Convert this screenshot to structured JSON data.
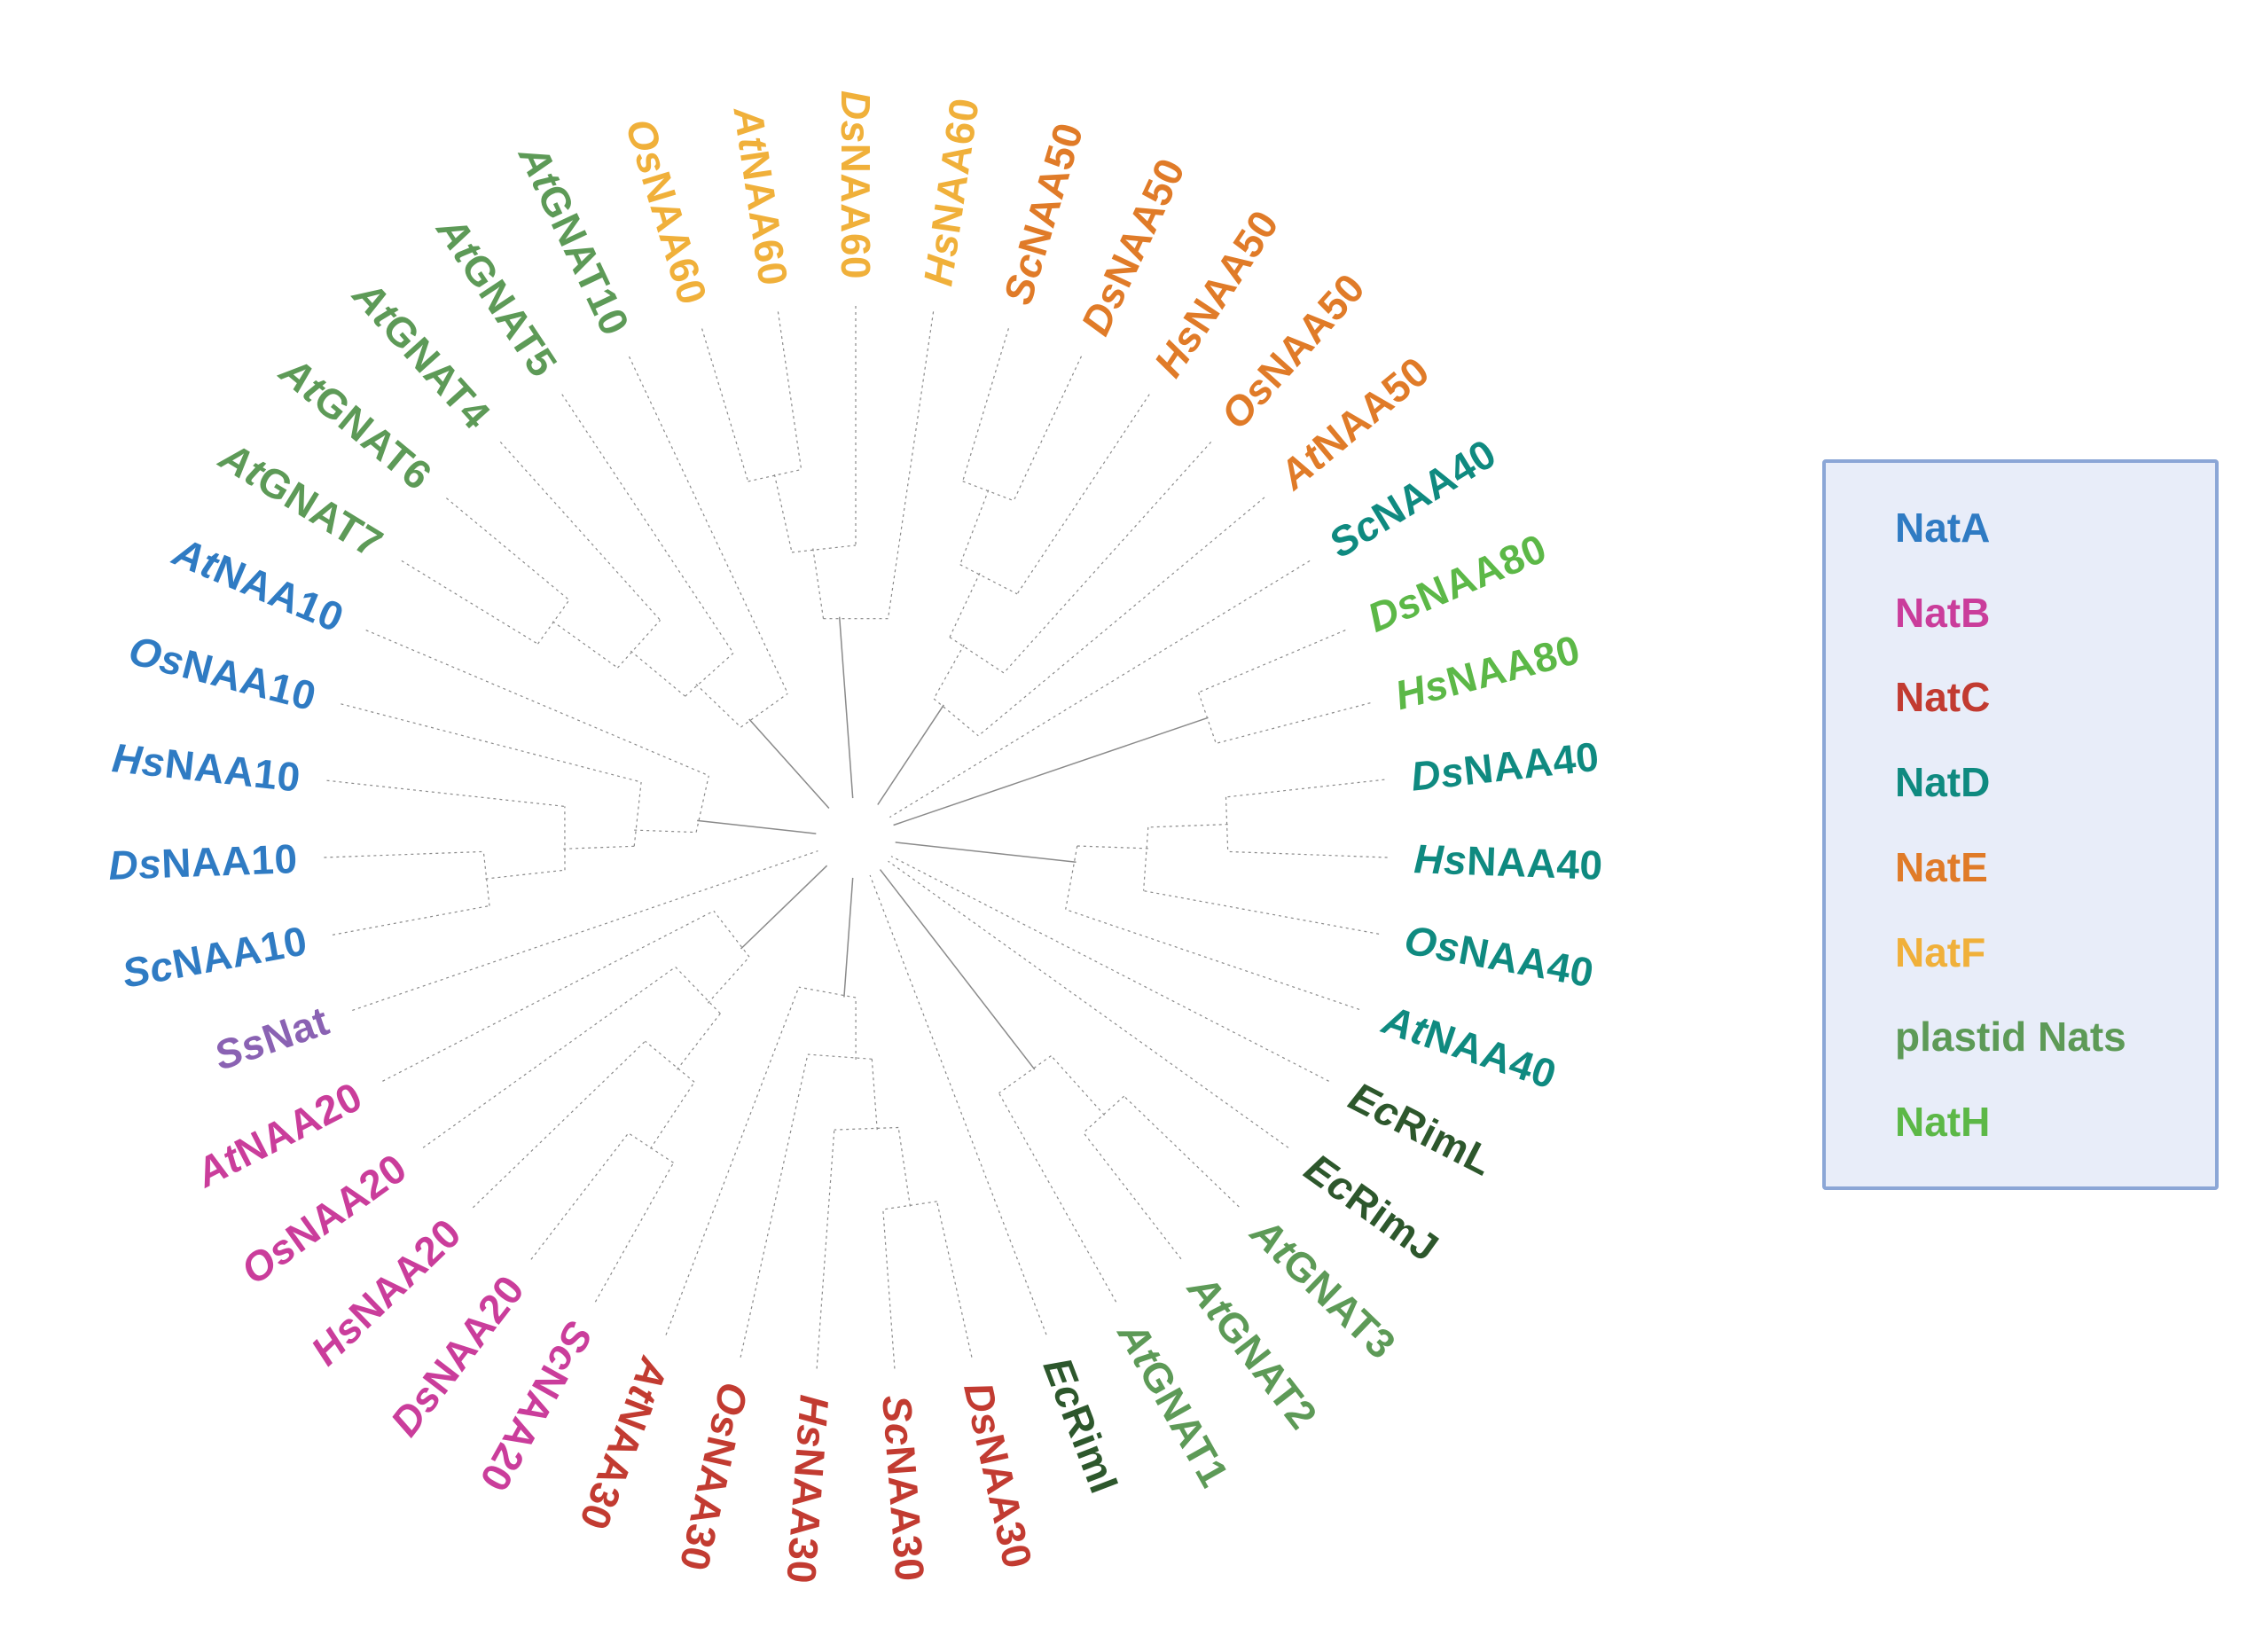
{
  "chart_data": {
    "type": "radial_cladogram",
    "description": "Unrooted radial phylogenetic tree of N-terminal acetyltransferase (Nat) catalytic subunits with color-coded families",
    "branch_color": "#8a8a8a",
    "groups": {
      "natA": {
        "label": "NatA",
        "color": "#2f7bc3"
      },
      "natB": {
        "label": "NatB",
        "color": "#ca3d9b"
      },
      "natC": {
        "label": "NatC",
        "color": "#c23b31"
      },
      "natD": {
        "label": "NatD",
        "color": "#0f8a80"
      },
      "natE": {
        "label": "NatE",
        "color": "#e07b28"
      },
      "natF": {
        "label": "NatF",
        "color": "#f0b03a"
      },
      "plastid": {
        "label": "plastid Nats",
        "color": "#5d9a57"
      },
      "natH": {
        "label": "NatH",
        "color": "#5cb847"
      },
      "ecoli": {
        "label": "",
        "color": "#2d572c"
      },
      "ssnat": {
        "label": "",
        "color": "#8a62b3"
      }
    },
    "legend_keys": [
      "natA",
      "natB",
      "natC",
      "natD",
      "natE",
      "natF",
      "plastid",
      "natH"
    ],
    "leaves": [
      {
        "prefix": "Ds",
        "name": "NAA60",
        "group": "natF",
        "angle": -90.0
      },
      {
        "prefix": "Hs",
        "name": "NAA60",
        "group": "natF",
        "angle": -81.6
      },
      {
        "prefix": "Sc",
        "name": "NAA50",
        "group": "natE",
        "angle": -73.3
      },
      {
        "prefix": "Ds",
        "name": "NAA50",
        "group": "natE",
        "angle": -64.9
      },
      {
        "prefix": "Hs",
        "name": "NAA50",
        "group": "natE",
        "angle": -56.5
      },
      {
        "prefix": "Os",
        "name": "NAA50",
        "group": "natE",
        "angle": -48.1
      },
      {
        "prefix": "At",
        "name": "NAA50",
        "group": "natE",
        "angle": -39.8
      },
      {
        "prefix": "Sc",
        "name": "NAA40",
        "group": "natD",
        "angle": -31.4
      },
      {
        "prefix": "Ds",
        "name": "NAA80",
        "group": "natH",
        "angle": -23.0
      },
      {
        "prefix": "Hs",
        "name": "NAA80",
        "group": "natH",
        "angle": -14.7
      },
      {
        "prefix": "Ds",
        "name": "NAA40",
        "group": "natD",
        "angle": -6.3
      },
      {
        "prefix": "Hs",
        "name": "NAA40",
        "group": "natD",
        "angle": 2.1
      },
      {
        "prefix": "Os",
        "name": "NAA40",
        "group": "natD",
        "angle": 10.4
      },
      {
        "prefix": "At",
        "name": "NAA40",
        "group": "natD",
        "angle": 18.8
      },
      {
        "prefix": "Ec",
        "name": "RimL",
        "group": "ecoli",
        "angle": 27.2
      },
      {
        "prefix": "Ec",
        "name": "RimJ",
        "group": "ecoli",
        "angle": 35.6
      },
      {
        "prefix": "At",
        "name": "GNAT3",
        "group": "plastid",
        "angle": 43.9
      },
      {
        "prefix": "At",
        "name": "GNAT2",
        "group": "plastid",
        "angle": 52.3
      },
      {
        "prefix": "At",
        "name": "GNAT1",
        "group": "plastid",
        "angle": 60.7
      },
      {
        "prefix": "Ec",
        "name": "RimI",
        "group": "ecoli",
        "angle": 69.0
      },
      {
        "prefix": "Ds",
        "name": "NAA30",
        "group": "natC",
        "angle": 77.4
      },
      {
        "prefix": "Sc",
        "name": "NAA30",
        "group": "natC",
        "angle": 85.8
      },
      {
        "prefix": "Hs",
        "name": "NAA30",
        "group": "natC",
        "angle": 94.2
      },
      {
        "prefix": "Os",
        "name": "NAA30",
        "group": "natC",
        "angle": 102.5
      },
      {
        "prefix": "At",
        "name": "NAA30",
        "group": "natC",
        "angle": 110.9
      },
      {
        "prefix": "Sc",
        "name": "NAA20",
        "group": "natB",
        "angle": 119.3
      },
      {
        "prefix": "Ds",
        "name": "NAA20",
        "group": "natB",
        "angle": 127.6
      },
      {
        "prefix": "Hs",
        "name": "NAA20",
        "group": "natB",
        "angle": 136.0
      },
      {
        "prefix": "Os",
        "name": "NAA20",
        "group": "natB",
        "angle": 144.4
      },
      {
        "prefix": "At",
        "name": "NAA20",
        "group": "natB",
        "angle": 152.8
      },
      {
        "prefix": "Ss",
        "name": "Nat",
        "group": "ssnat",
        "angle": 161.1
      },
      {
        "prefix": "Sc",
        "name": "NAA10",
        "group": "natA",
        "angle": 169.5
      },
      {
        "prefix": "Ds",
        "name": "NAA10",
        "group": "natA",
        "angle": 177.9
      },
      {
        "prefix": "Hs",
        "name": "NAA10",
        "group": "natA",
        "angle": 186.2
      },
      {
        "prefix": "Os",
        "name": "NAA10",
        "group": "natA",
        "angle": 194.6
      },
      {
        "prefix": "At",
        "name": "NAA10",
        "group": "natA",
        "angle": 203.0
      },
      {
        "prefix": "At",
        "name": "GNAT7",
        "group": "plastid",
        "angle": 211.4
      },
      {
        "prefix": "At",
        "name": "GNAT6",
        "group": "plastid",
        "angle": 219.7
      },
      {
        "prefix": "At",
        "name": "GNAT4",
        "group": "plastid",
        "angle": 228.1
      },
      {
        "prefix": "At",
        "name": "GNAT5",
        "group": "plastid",
        "angle": 236.5
      },
      {
        "prefix": "At",
        "name": "GNAT10",
        "group": "plastid",
        "angle": 244.8
      },
      {
        "prefix": "Os",
        "name": "NAA60",
        "group": "natF",
        "angle": 253.2
      },
      {
        "prefix": "At",
        "name": "NAA60",
        "group": "natF",
        "angle": 261.6
      }
    ],
    "clades": [
      [
        41,
        42,
        0,
        1
      ],
      [
        2,
        3,
        4,
        5,
        6
      ],
      [
        7
      ],
      [
        8,
        9
      ],
      [
        10,
        11,
        12,
        13
      ],
      [
        14
      ],
      [
        15
      ],
      [
        16,
        17,
        18
      ],
      [
        19
      ],
      [
        20,
        21,
        22,
        23,
        24
      ],
      [
        25,
        26,
        27,
        28,
        29
      ],
      [
        30
      ],
      [
        31,
        32,
        33,
        34,
        35
      ],
      [
        36,
        37,
        38,
        39,
        40
      ]
    ]
  }
}
